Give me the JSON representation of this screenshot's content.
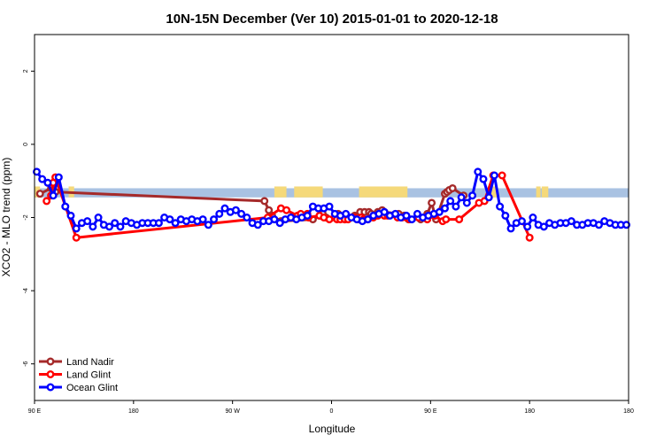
{
  "chart_data": {
    "type": "line",
    "title": "10N-15N December (Ver 10)   2015-01-01 to 2020-12-18",
    "xlabel": "Longitude",
    "ylabel": "XCO2 - MLO trend (ppm)",
    "xlim": [
      0,
      540
    ],
    "ylim": [
      -7,
      3
    ],
    "x_ticks": [
      {
        "value": 0,
        "label": "90 E"
      },
      {
        "value": 90,
        "label": "180"
      },
      {
        "value": 180,
        "label": "90 W"
      },
      {
        "value": 270,
        "label": "0"
      },
      {
        "value": 360,
        "label": "90 E"
      },
      {
        "value": 450,
        "label": "180"
      },
      {
        "value": 540,
        "label": "180"
      }
    ],
    "y_ticks": [
      {
        "value": 2,
        "label": "2"
      },
      {
        "value": 0,
        "label": "0"
      },
      {
        "value": -2,
        "label": "-2"
      },
      {
        "value": -4,
        "label": "-4"
      },
      {
        "value": -6,
        "label": "-6"
      }
    ],
    "land_band": {
      "ymin": -1.45,
      "ymax": -1.2,
      "ocean_color": "#a9c2e2",
      "land_color": "#f5d97a"
    },
    "land_segments": [
      [
        0,
        5
      ],
      [
        31,
        36
      ],
      [
        218,
        229
      ],
      [
        236,
        262
      ],
      [
        295,
        339
      ],
      [
        412,
        421
      ],
      [
        456,
        460
      ],
      [
        461,
        467
      ]
    ],
    "series": [
      {
        "name": "Land Nadir",
        "color": "#a52a2a",
        "x": [
          5,
          15,
          17,
          19,
          209,
          213,
          216,
          224,
          253,
          260,
          262,
          265,
          273,
          276,
          279,
          282,
          291,
          296,
          300,
          304,
          306,
          312,
          316,
          318,
          331,
          336,
          337,
          340,
          351,
          357,
          361,
          365,
          373,
          375,
          377,
          380,
          390
        ],
        "y": [
          -1.35,
          -1.2,
          -1.25,
          -1.3,
          -1.55,
          -1.8,
          -1.95,
          -2.1,
          -2.05,
          -1.95,
          -1.9,
          -2.0,
          -2.0,
          -1.9,
          -2.0,
          -2.05,
          -1.95,
          -1.85,
          -1.85,
          -1.85,
          -1.9,
          -1.85,
          -1.8,
          -1.85,
          -1.9,
          -1.95,
          -1.95,
          -2.05,
          -2.05,
          -1.9,
          -1.6,
          -2.05,
          -1.35,
          -1.3,
          -1.25,
          -1.2,
          -1.4
        ]
      },
      {
        "name": "Land Glint",
        "color": "#ff0000",
        "x": [
          11,
          15,
          17,
          19,
          38,
          212,
          224,
          229,
          239,
          242,
          248,
          249,
          259,
          263,
          268,
          275,
          278,
          282,
          285,
          291,
          294,
          297,
          299,
          303,
          308,
          312,
          318,
          321,
          330,
          334,
          338,
          341,
          349,
          357,
          364,
          371,
          374,
          386,
          404,
          409,
          417,
          425,
          450
        ],
        "y": [
          -1.55,
          -1.4,
          -1.05,
          -0.9,
          -2.55,
          -2.0,
          -1.75,
          -1.8,
          -1.95,
          -1.9,
          -1.9,
          -2.0,
          -1.95,
          -2.0,
          -2.05,
          -2.05,
          -2.05,
          -2.05,
          -2.05,
          -2.0,
          -2.05,
          -2.0,
          -2.05,
          -2.05,
          -2.0,
          -1.95,
          -1.95,
          -1.95,
          -2.0,
          -2.0,
          -2.0,
          -2.05,
          -2.0,
          -2.05,
          -1.95,
          -2.1,
          -2.05,
          -2.05,
          -1.6,
          -1.55,
          -0.85,
          -0.85,
          -2.55
        ]
      },
      {
        "name": "Ocean Glint",
        "color": "#0000ff",
        "x": [
          2,
          7,
          12,
          17,
          22,
          28,
          33,
          38,
          43,
          48,
          53,
          58,
          63,
          68,
          73,
          78,
          83,
          88,
          93,
          98,
          103,
          108,
          113,
          118,
          123,
          128,
          133,
          138,
          143,
          148,
          153,
          158,
          163,
          168,
          173,
          178,
          183,
          188,
          193,
          198,
          203,
          208,
          213,
          218,
          223,
          228,
          233,
          238,
          243,
          248,
          253,
          258,
          263,
          268,
          273,
          278,
          283,
          288,
          293,
          298,
          303,
          308,
          313,
          318,
          323,
          328,
          333,
          338,
          343,
          348,
          353,
          358,
          363,
          368,
          373,
          378,
          383,
          388,
          393,
          398,
          403,
          408,
          413,
          418,
          423,
          428,
          433,
          438,
          443,
          448,
          453,
          458,
          463,
          468,
          473,
          478,
          483,
          488,
          493,
          498,
          503,
          508,
          513,
          518,
          523,
          528,
          533,
          538
        ],
        "y": [
          -0.75,
          -0.95,
          -1.05,
          -1.4,
          -0.9,
          -1.7,
          -1.95,
          -2.3,
          -2.15,
          -2.1,
          -2.25,
          -2.0,
          -2.2,
          -2.25,
          -2.15,
          -2.25,
          -2.1,
          -2.15,
          -2.2,
          -2.15,
          -2.15,
          -2.15,
          -2.15,
          -2.0,
          -2.05,
          -2.15,
          -2.05,
          -2.1,
          -2.05,
          -2.1,
          -2.05,
          -2.2,
          -2.05,
          -1.9,
          -1.75,
          -1.85,
          -1.8,
          -1.9,
          -2.0,
          -2.15,
          -2.2,
          -2.1,
          -2.1,
          -2.05,
          -2.15,
          -2.05,
          -2.0,
          -2.05,
          -2.0,
          -1.95,
          -1.7,
          -1.75,
          -1.75,
          -1.7,
          -1.9,
          -1.95,
          -1.9,
          -2.0,
          -2.05,
          -2.1,
          -2.05,
          -1.95,
          -1.9,
          -1.85,
          -1.95,
          -1.9,
          -2.0,
          -1.95,
          -2.05,
          -1.9,
          -2.0,
          -1.95,
          -1.9,
          -1.85,
          -1.75,
          -1.55,
          -1.7,
          -1.45,
          -1.6,
          -1.4,
          -0.75,
          -0.95,
          -1.45,
          -0.85,
          -1.7,
          -1.95,
          -2.3,
          -2.15,
          -2.1,
          -2.25,
          -2.0,
          -2.2,
          -2.25,
          -2.15,
          -2.2,
          -2.15,
          -2.15,
          -2.1,
          -2.2,
          -2.2,
          -2.15,
          -2.15,
          -2.2,
          -2.1,
          -2.15,
          -2.2,
          -2.2,
          -2.2
        ]
      }
    ],
    "legend_position": "bottom-left"
  }
}
